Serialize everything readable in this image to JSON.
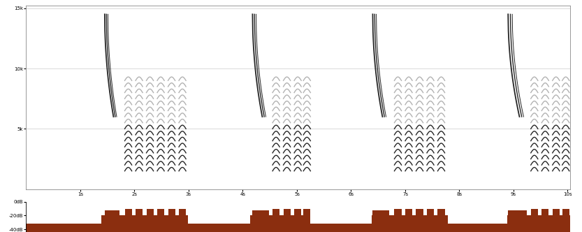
{
  "chart_data": [
    {
      "type": "spectrogram",
      "xlim": [
        0,
        10.05
      ],
      "xticks": [
        {
          "value": 1,
          "label": "1s"
        },
        {
          "value": 2,
          "label": "2s"
        },
        {
          "value": 3,
          "label": "3s"
        },
        {
          "value": 4,
          "label": "4s"
        },
        {
          "value": 5,
          "label": "5s"
        },
        {
          "value": 6,
          "label": "6s"
        },
        {
          "value": 7,
          "label": "7s"
        },
        {
          "value": 8,
          "label": "8s"
        },
        {
          "value": 9,
          "label": "9s"
        },
        {
          "value": 10,
          "label": "10s"
        }
      ],
      "ylim": [
        0,
        15200
      ],
      "yticks": [
        {
          "value": 5000,
          "label": "5k"
        },
        {
          "value": 10000,
          "label": "10k"
        },
        {
          "value": 15000,
          "label": "15k"
        }
      ],
      "grid": true,
      "color": "#000000",
      "notes": [
        {
          "kind": "whistle",
          "start": 1.45,
          "end": 1.72,
          "fmin": 6000,
          "fmax": 14500
        },
        {
          "kind": "harmonic",
          "start": 1.82,
          "end": 1.95,
          "fmin": 1500,
          "fmax": 9000,
          "step": 500
        },
        {
          "kind": "harmonic",
          "start": 2.02,
          "end": 2.15,
          "fmin": 1500,
          "fmax": 9000,
          "step": 500
        },
        {
          "kind": "harmonic",
          "start": 2.22,
          "end": 2.35,
          "fmin": 1500,
          "fmax": 9000,
          "step": 500
        },
        {
          "kind": "harmonic",
          "start": 2.42,
          "end": 2.55,
          "fmin": 1500,
          "fmax": 9000,
          "step": 500
        },
        {
          "kind": "harmonic",
          "start": 2.62,
          "end": 2.75,
          "fmin": 1500,
          "fmax": 9000,
          "step": 500
        },
        {
          "kind": "harmonic",
          "start": 2.82,
          "end": 2.95,
          "fmin": 1500,
          "fmax": 9000,
          "step": 500
        },
        {
          "kind": "whistle",
          "start": 4.18,
          "end": 4.48,
          "fmin": 6000,
          "fmax": 14500
        },
        {
          "kind": "harmonic",
          "start": 4.55,
          "end": 4.68,
          "fmin": 1500,
          "fmax": 9000,
          "step": 500
        },
        {
          "kind": "harmonic",
          "start": 4.75,
          "end": 4.88,
          "fmin": 1500,
          "fmax": 9000,
          "step": 500
        },
        {
          "kind": "harmonic",
          "start": 4.95,
          "end": 5.08,
          "fmin": 1500,
          "fmax": 9000,
          "step": 500
        },
        {
          "kind": "harmonic",
          "start": 5.12,
          "end": 5.25,
          "fmin": 1500,
          "fmax": 9000,
          "step": 500
        },
        {
          "kind": "whistle",
          "start": 6.4,
          "end": 6.7,
          "fmin": 6000,
          "fmax": 14500
        },
        {
          "kind": "harmonic",
          "start": 6.8,
          "end": 6.93,
          "fmin": 1500,
          "fmax": 9000,
          "step": 500
        },
        {
          "kind": "harmonic",
          "start": 7.0,
          "end": 7.13,
          "fmin": 1500,
          "fmax": 9000,
          "step": 500
        },
        {
          "kind": "harmonic",
          "start": 7.2,
          "end": 7.33,
          "fmin": 1500,
          "fmax": 9000,
          "step": 500
        },
        {
          "kind": "harmonic",
          "start": 7.4,
          "end": 7.53,
          "fmin": 1500,
          "fmax": 9000,
          "step": 500
        },
        {
          "kind": "harmonic",
          "start": 7.6,
          "end": 7.73,
          "fmin": 1500,
          "fmax": 9000,
          "step": 500
        },
        {
          "kind": "whistle",
          "start": 8.9,
          "end": 9.25,
          "fmin": 6000,
          "fmax": 14500
        },
        {
          "kind": "harmonic",
          "start": 9.32,
          "end": 9.45,
          "fmin": 1500,
          "fmax": 9000,
          "step": 500
        },
        {
          "kind": "harmonic",
          "start": 9.52,
          "end": 9.65,
          "fmin": 1500,
          "fmax": 9000,
          "step": 500
        },
        {
          "kind": "harmonic",
          "start": 9.72,
          "end": 9.85,
          "fmin": 1500,
          "fmax": 9000,
          "step": 500
        },
        {
          "kind": "harmonic",
          "start": 9.9,
          "end": 10.03,
          "fmin": 1500,
          "fmax": 9000,
          "step": 500
        }
      ]
    },
    {
      "type": "area",
      "xlim": [
        0,
        10.05
      ],
      "ylim": [
        -44,
        0
      ],
      "yticks": [
        {
          "value": 0,
          "label": "0dB"
        },
        {
          "value": -20,
          "label": "-20dB"
        },
        {
          "value": -40,
          "label": "-40dB"
        }
      ],
      "tick_labels": "y",
      "color": "#8b2e0f",
      "baseline": -32,
      "segments": [
        [
          1.39,
          2.99,
          -20
        ],
        [
          1.45,
          1.72,
          -12
        ],
        [
          1.82,
          1.95,
          -10
        ],
        [
          2.02,
          2.15,
          -10
        ],
        [
          2.22,
          2.35,
          -10
        ],
        [
          2.42,
          2.55,
          -10
        ],
        [
          2.62,
          2.75,
          -10
        ],
        [
          2.82,
          2.95,
          -10
        ],
        [
          4.14,
          5.25,
          -20
        ],
        [
          4.18,
          4.48,
          -12
        ],
        [
          4.55,
          4.68,
          -10
        ],
        [
          4.75,
          4.88,
          -10
        ],
        [
          4.95,
          5.08,
          -10
        ],
        [
          5.12,
          5.25,
          -10
        ],
        [
          6.38,
          7.79,
          -20
        ],
        [
          6.4,
          6.7,
          -12
        ],
        [
          6.8,
          6.93,
          -10
        ],
        [
          7.0,
          7.13,
          -10
        ],
        [
          7.2,
          7.33,
          -10
        ],
        [
          7.4,
          7.53,
          -10
        ],
        [
          7.6,
          7.73,
          -10
        ],
        [
          8.88,
          10.04,
          -20
        ],
        [
          8.9,
          9.25,
          -12
        ],
        [
          9.32,
          9.45,
          -10
        ],
        [
          9.52,
          9.65,
          -10
        ],
        [
          9.72,
          9.85,
          -10
        ],
        [
          9.9,
          10.03,
          -10
        ]
      ]
    }
  ]
}
